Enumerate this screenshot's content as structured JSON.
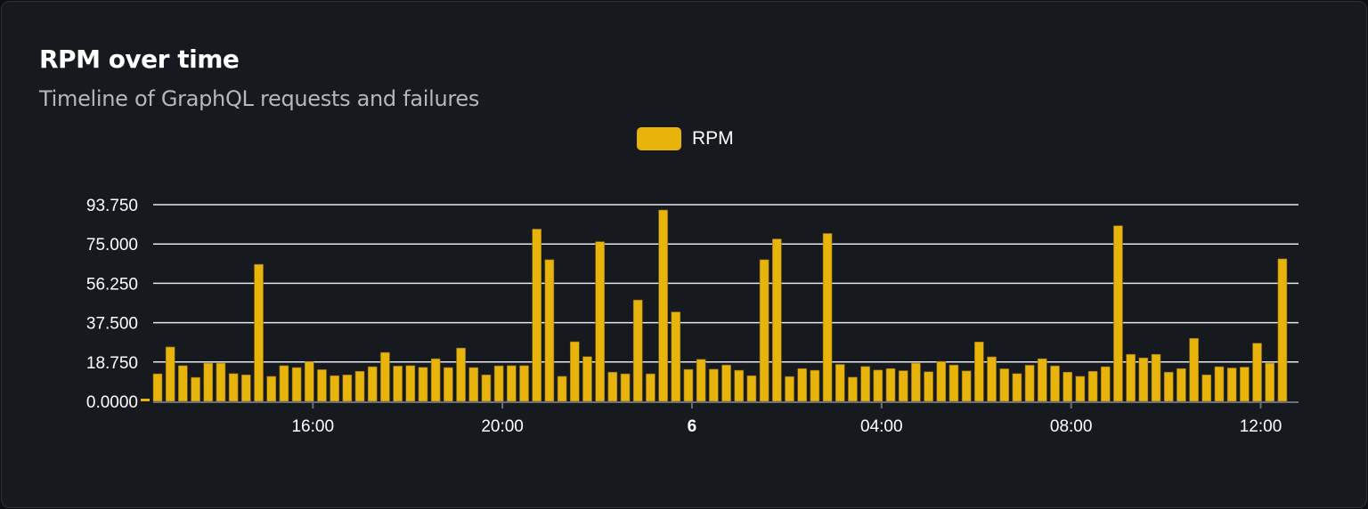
{
  "card": {
    "title": "RPM over time",
    "subtitle": "Timeline of GraphQL requests and failures"
  },
  "colors": {
    "bar": "#e8b30b",
    "grid": "#e4e7ee",
    "axis": "#6b6e75",
    "background": "#16191e"
  },
  "chart_data": {
    "type": "bar",
    "legend": {
      "position": "top",
      "entries": [
        "RPM"
      ]
    },
    "series": [
      {
        "name": "RPM",
        "values": [
          13.1,
          25.9,
          17.0,
          11.4,
          18.2,
          18.2,
          13.2,
          12.6,
          65.3,
          11.9,
          17.0,
          16.1,
          18.8,
          15.1,
          12.2,
          12.6,
          14.3,
          16.5,
          23.3,
          16.8,
          17.0,
          16.2,
          20.3,
          16.1,
          25.4,
          16.1,
          12.6,
          16.9,
          17.0,
          17.0,
          82.1,
          67.5,
          11.9,
          28.4,
          21.3,
          76.1,
          13.9,
          13.1,
          48.3,
          13.1,
          91.2,
          42.6,
          15.2,
          20.0,
          15.3,
          17.3,
          14.8,
          12.2,
          67.5,
          77.4,
          11.8,
          15.6,
          14.8,
          80.0,
          17.6,
          11.5,
          16.6,
          14.9,
          15.6,
          14.6,
          18.2,
          14.1,
          19.0,
          17.3,
          14.5,
          28.3,
          21.2,
          15.5,
          13.2,
          17.2,
          20.3,
          16.9,
          13.9,
          11.9,
          14.3,
          16.5,
          83.7,
          22.4,
          20.7,
          22.4,
          13.9,
          15.6,
          30.0,
          12.6,
          16.5,
          15.9,
          16.3,
          27.7,
          18.2,
          67.9
        ]
      }
    ],
    "x": [
      "12:48",
      "13:04",
      "13:20",
      "13:36",
      "13:52",
      "14:08",
      "14:24",
      "14:40",
      "14:56",
      "15:12",
      "15:28",
      "15:44",
      "16:00",
      "16:16",
      "16:32",
      "16:48",
      "17:04",
      "17:20",
      "17:36",
      "17:52",
      "18:08",
      "18:24",
      "18:40",
      "18:56",
      "19:12",
      "19:28",
      "19:44",
      "20:00",
      "20:16",
      "20:32",
      "20:48",
      "21:04",
      "21:20",
      "21:36",
      "21:52",
      "22:08",
      "22:24",
      "22:40",
      "22:56",
      "23:12",
      "23:28",
      "23:44",
      "00:00",
      "00:16",
      "00:32",
      "00:48",
      "01:04",
      "01:20",
      "01:36",
      "01:52",
      "02:08",
      "02:24",
      "02:40",
      "02:56",
      "03:12",
      "03:28",
      "03:44",
      "04:00",
      "04:16",
      "04:32",
      "04:48",
      "05:04",
      "05:20",
      "05:36",
      "05:52",
      "06:08",
      "06:24",
      "06:40",
      "06:56",
      "07:12",
      "07:28",
      "07:44",
      "08:00",
      "08:16",
      "08:32",
      "08:48",
      "09:04",
      "09:20",
      "09:36",
      "09:52",
      "10:08",
      "10:24",
      "10:40",
      "10:56",
      "11:12",
      "11:28",
      "11:44",
      "12:00",
      "12:16",
      "12:32"
    ],
    "x_ticks": [
      {
        "label": "16:00",
        "at": "16:00",
        "bold": false
      },
      {
        "label": "20:00",
        "at": "20:00",
        "bold": false
      },
      {
        "label": "6",
        "at": "00:00",
        "bold": true
      },
      {
        "label": "04:00",
        "at": "04:00",
        "bold": false
      },
      {
        "label": "08:00",
        "at": "08:00",
        "bold": false
      },
      {
        "label": "12:00",
        "at": "12:00",
        "bold": false
      }
    ],
    "y_ticks": [
      {
        "label": "0.0000",
        "value": 0
      },
      {
        "label": "18.750",
        "value": 18.75
      },
      {
        "label": "37.500",
        "value": 37.5
      },
      {
        "label": "56.250",
        "value": 56.25
      },
      {
        "label": "75.000",
        "value": 75
      },
      {
        "label": "93.750",
        "value": 93.75
      }
    ],
    "ylim": [
      0,
      93.75
    ],
    "grid": true,
    "xlabel": "",
    "ylabel": ""
  }
}
